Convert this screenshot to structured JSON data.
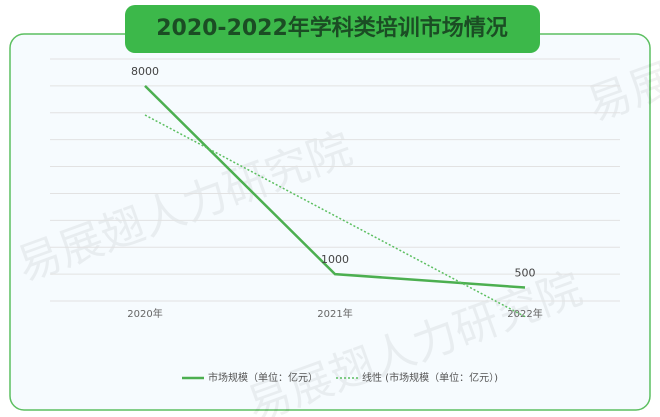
{
  "chart_data": {
    "type": "line",
    "title": "2020-2022年学科类培训市场情况",
    "watermark": "易展翅人力研究院",
    "categories": [
      "2020年",
      "2021年",
      "2022年"
    ],
    "series": [
      {
        "name": "市场规模（单位：亿元）",
        "color": "#4caf50",
        "style": "solid",
        "data_labels": true,
        "values": [
          8000,
          1000,
          500
        ]
      },
      {
        "name": "线性 (市场规模（单位：亿元）)",
        "color": "#5cbf60",
        "style": "dotted",
        "data_labels": false,
        "values": [
          6917,
          3167,
          -583
        ]
      }
    ],
    "ylim": [
      0,
      9000
    ],
    "yticks": [
      0,
      1000,
      2000,
      3000,
      4000,
      5000,
      6000,
      7000,
      8000,
      9000
    ],
    "grid": true
  }
}
